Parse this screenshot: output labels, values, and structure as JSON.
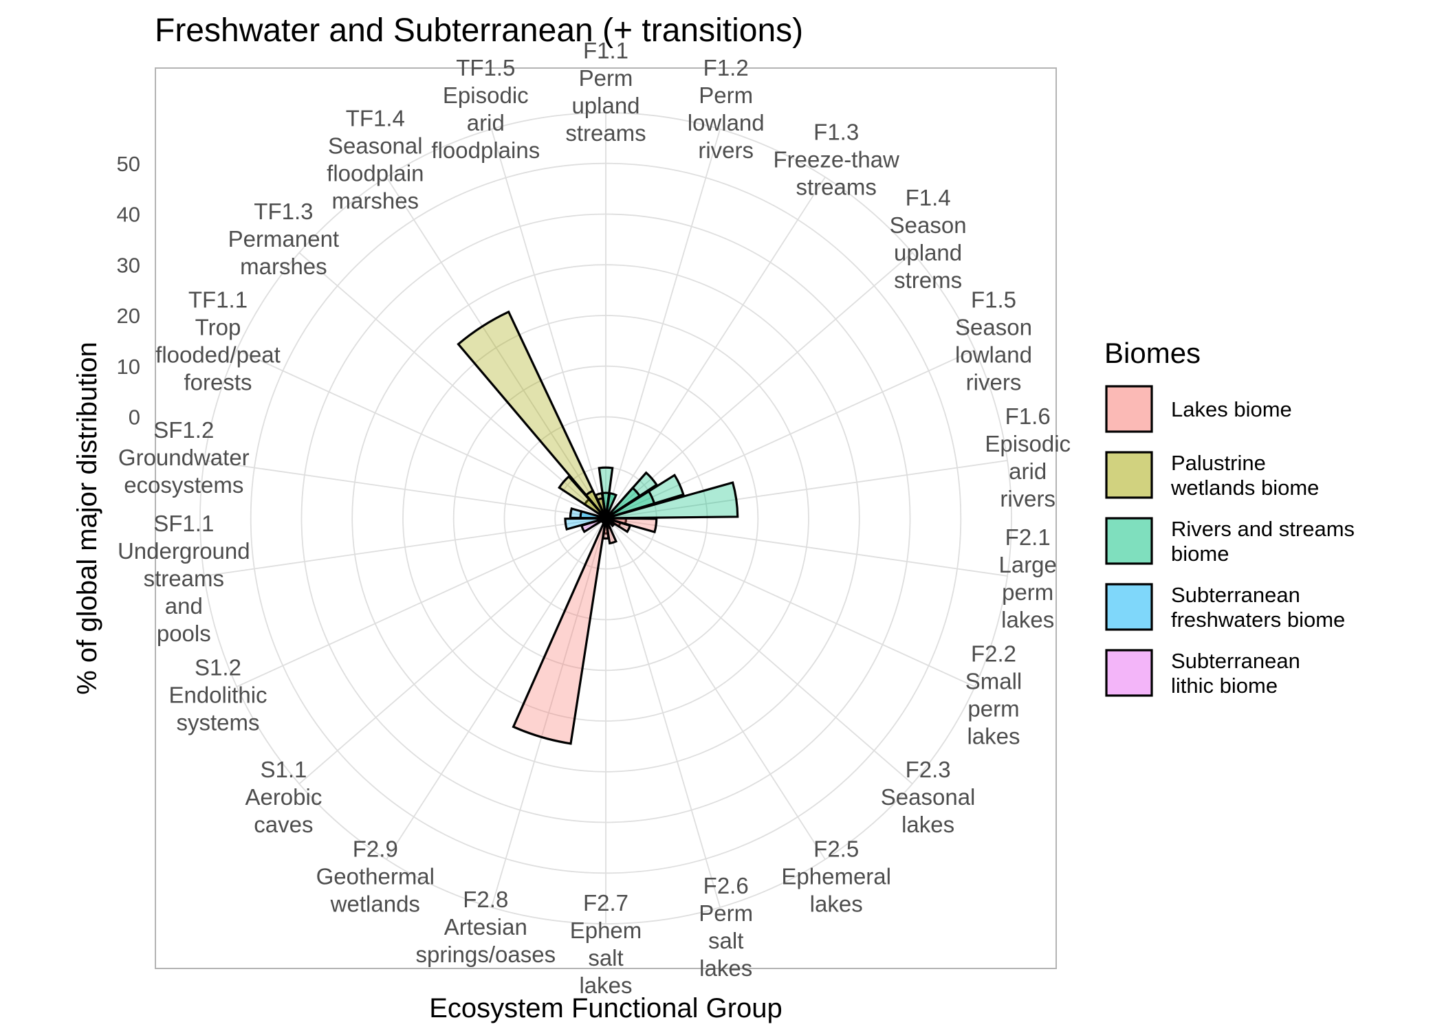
{
  "chart_data": {
    "type": "bar",
    "subtype": "stacked polar bar (coxcomb)",
    "title": "Freshwater and Subterranean (+ transitions)",
    "xlabel": "Ecosystem Functional Group",
    "ylabel": "% of global major distribution",
    "ylim": [
      -20,
      60
    ],
    "y_ticks": [
      0,
      10,
      20,
      30,
      40,
      50
    ],
    "grid": true,
    "legend_title": "Biomes",
    "legend_position": "right",
    "categories": [
      {
        "lines": [
          "F1.1",
          "Perm",
          "upland",
          "streams"
        ]
      },
      {
        "lines": [
          "F1.2",
          "Perm",
          "lowland",
          "rivers"
        ]
      },
      {
        "lines": [
          "F1.3",
          "Freeze-thaw",
          "streams"
        ]
      },
      {
        "lines": [
          "F1.4",
          "Season",
          "upland",
          "strems"
        ]
      },
      {
        "lines": [
          "F1.5",
          "Season",
          "lowland",
          "rivers"
        ]
      },
      {
        "lines": [
          "F1.6",
          "Episodic",
          "arid",
          "rivers"
        ]
      },
      {
        "lines": [
          "F2.1",
          "Large",
          "perm",
          "lakes"
        ]
      },
      {
        "lines": [
          "F2.2",
          "Small",
          "perm",
          "lakes"
        ]
      },
      {
        "lines": [
          "F2.3",
          "Seasonal",
          "lakes"
        ]
      },
      {
        "lines": [
          "F2.5",
          "Ephemeral",
          "lakes"
        ]
      },
      {
        "lines": [
          "F2.6",
          "Perm",
          "salt",
          "lakes"
        ]
      },
      {
        "lines": [
          "F2.7",
          "Ephem",
          "salt",
          "lakes"
        ]
      },
      {
        "lines": [
          "F2.8",
          "Artesian",
          "springs/oases"
        ]
      },
      {
        "lines": [
          "F2.9",
          "Geothermal",
          "wetlands"
        ]
      },
      {
        "lines": [
          "S1.1",
          "Aerobic",
          "caves"
        ]
      },
      {
        "lines": [
          "S1.2",
          "Endolithic",
          "systems"
        ]
      },
      {
        "lines": [
          "SF1.1",
          "Underground",
          "streams",
          "and",
          "pools"
        ]
      },
      {
        "lines": [
          "SF1.2",
          "Groundwater",
          "ecosystems"
        ]
      },
      {
        "lines": [
          "TF1.1",
          "Trop",
          "flooded/peat",
          "forests"
        ]
      },
      {
        "lines": [
          "TF1.3",
          "Permanent",
          "marshes"
        ]
      },
      {
        "lines": [
          "TF1.4",
          "Seasonal",
          "floodplain",
          "marshes"
        ]
      },
      {
        "lines": [
          "TF1.5",
          "Episodic",
          "arid",
          "floodplains"
        ]
      }
    ],
    "series": [
      {
        "name": "Lakes biome",
        "color": "#F8766D",
        "values": [
          0,
          0,
          0,
          0,
          0,
          0,
          4,
          3,
          0,
          0,
          2,
          3,
          45,
          0,
          0,
          0,
          0,
          0,
          0,
          0,
          0,
          0
        ]
      },
      {
        "name": "Palustrine wetlands biome",
        "color": "#A3A500",
        "values": [
          0,
          0,
          0,
          0,
          0,
          0,
          0,
          0,
          0,
          0,
          0,
          0,
          0,
          0,
          0,
          0,
          0,
          0,
          0,
          5,
          45,
          5
        ]
      },
      {
        "name": "Rivers and streams biome",
        "color": "#00BF7D",
        "values": [
          10,
          0,
          0,
          12,
          16,
          26,
          0,
          0,
          0,
          0,
          0,
          0,
          0,
          0,
          0,
          0,
          0,
          0,
          0,
          0,
          0,
          0
        ]
      },
      {
        "name": "Subterranean freshwaters biome",
        "color": "#00B0F6",
        "values": [
          0,
          0,
          0,
          0,
          0,
          0,
          0,
          0,
          0,
          0,
          0,
          0,
          0,
          0,
          0,
          0,
          8,
          7,
          0,
          0,
          0,
          0
        ]
      },
      {
        "name": "Subterranean lithic biome",
        "color": "#E76BF3",
        "values": [
          0,
          0,
          0,
          0,
          0,
          0,
          0,
          0,
          0,
          0,
          0,
          0,
          0,
          0,
          0,
          5,
          0,
          0,
          0,
          0,
          0,
          0
        ]
      }
    ],
    "rings": [
      {
        "name": "Lakes biome",
        "values": [
          0,
          0,
          0,
          0,
          0,
          0,
          10,
          5,
          2,
          1,
          5,
          4,
          0,
          1,
          0,
          0,
          0,
          0,
          0,
          0,
          0,
          0
        ]
      },
      {
        "name": "Palustrine wetlands biome",
        "values": [
          0,
          0,
          0,
          0,
          0,
          0,
          0,
          0,
          0,
          0,
          0,
          0,
          0,
          0,
          0,
          0,
          0,
          0,
          0,
          11,
          6,
          4
        ]
      },
      {
        "name": "Rivers and streams biome",
        "values": [
          5,
          5,
          0,
          8,
          10,
          0,
          0,
          0,
          0,
          0,
          0,
          0,
          0,
          0,
          0,
          0,
          0,
          0,
          0,
          0,
          0,
          0
        ]
      },
      {
        "name": "Subterranean freshwaters biome",
        "values": [
          0,
          0,
          0,
          0,
          0,
          0,
          0,
          0,
          0,
          0,
          0,
          0,
          0,
          0,
          0,
          0,
          0,
          5,
          0,
          0,
          0,
          0
        ]
      },
      {
        "name": "Subterranean lithic biome",
        "values": [
          0,
          0,
          0,
          0,
          0,
          0,
          0,
          0,
          0,
          0,
          0,
          0,
          0,
          0,
          0,
          0,
          0,
          0,
          0,
          0,
          0,
          0
        ]
      }
    ],
    "legend_entries": [
      {
        "lines": [
          "Lakes biome"
        ],
        "color": "#F8766D"
      },
      {
        "lines": [
          "Palustrine",
          "wetlands biome"
        ],
        "color": "#A3A500"
      },
      {
        "lines": [
          "Rivers and streams",
          "biome"
        ],
        "color": "#00BF7D"
      },
      {
        "lines": [
          "Subterranean",
          "freshwaters biome"
        ],
        "color": "#00B0F6"
      },
      {
        "lines": [
          "Subterranean",
          "lithic biome"
        ],
        "color": "#E76BF3"
      }
    ]
  }
}
